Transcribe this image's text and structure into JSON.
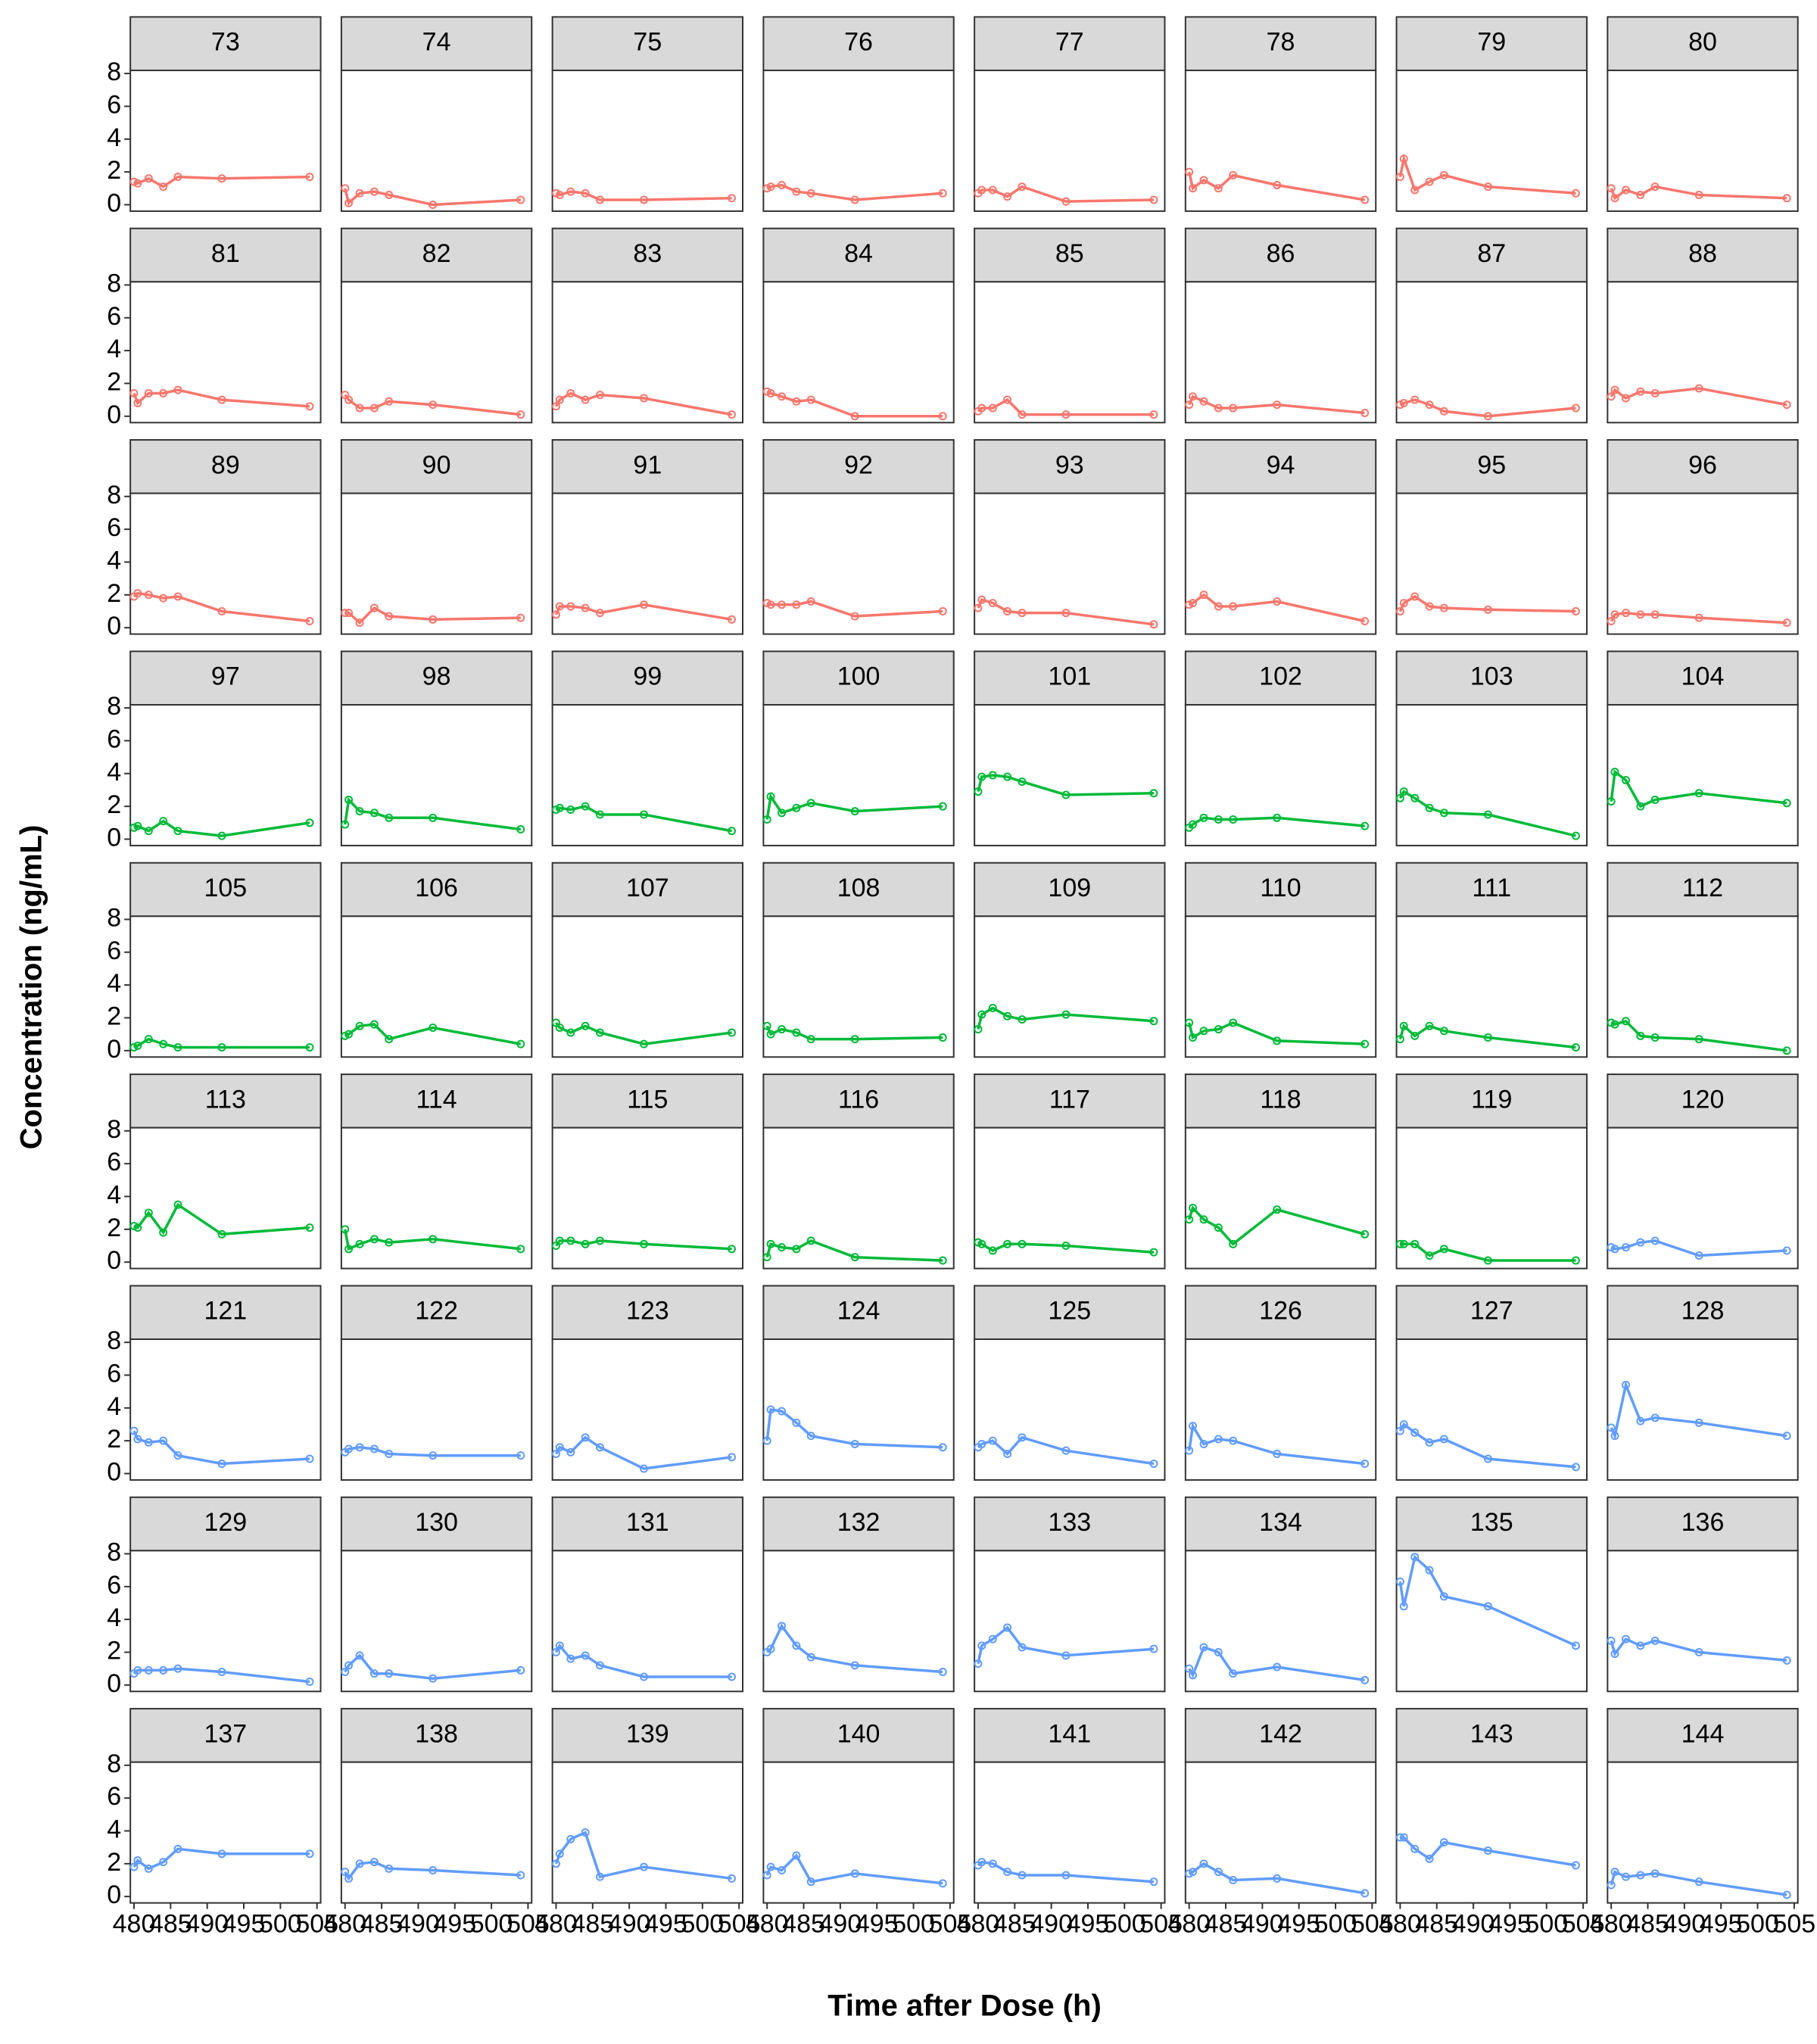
{
  "chart_data": {
    "type": "line",
    "xlabel": "Time after Dose (h)",
    "ylabel": "Concentration (ng/mL)",
    "x": [
      480,
      480.5,
      482,
      484,
      486,
      492,
      504
    ],
    "xlim": [
      479.5,
      505.5
    ],
    "xticks": [
      480,
      485,
      490,
      495,
      500,
      505
    ],
    "ylim": [
      -0.39,
      8.19
    ],
    "yticks": [
      0,
      2,
      4,
      6,
      8
    ],
    "panels": [
      {
        "title": "73",
        "color": "#F8766D",
        "values": [
          1.4,
          1.3,
          1.6,
          1.1,
          1.7,
          1.6,
          1.7
        ]
      },
      {
        "title": "74",
        "color": "#F8766D",
        "values": [
          1.0,
          0.1,
          0.7,
          0.8,
          0.6,
          0.0,
          0.3
        ]
      },
      {
        "title": "75",
        "color": "#F8766D",
        "values": [
          0.7,
          0.6,
          0.8,
          0.7,
          0.3,
          0.3,
          0.4
        ]
      },
      {
        "title": "76",
        "color": "#F8766D",
        "values": [
          1.0,
          1.1,
          1.2,
          0.8,
          0.7,
          0.3,
          0.7
        ]
      },
      {
        "title": "77",
        "color": "#F8766D",
        "values": [
          0.7,
          0.9,
          0.9,
          0.5,
          1.1,
          0.2,
          0.3
        ]
      },
      {
        "title": "78",
        "color": "#F8766D",
        "values": [
          2.0,
          1.0,
          1.5,
          1.0,
          1.8,
          1.2,
          0.3
        ]
      },
      {
        "title": "79",
        "color": "#F8766D",
        "values": [
          1.7,
          2.8,
          0.9,
          1.4,
          1.8,
          1.1,
          0.7
        ]
      },
      {
        "title": "80",
        "color": "#F8766D",
        "values": [
          1.0,
          0.4,
          0.9,
          0.6,
          1.1,
          0.6,
          0.4
        ]
      },
      {
        "title": "81",
        "color": "#F8766D",
        "values": [
          1.4,
          0.8,
          1.4,
          1.4,
          1.6,
          1.0,
          0.6
        ]
      },
      {
        "title": "82",
        "color": "#F8766D",
        "values": [
          1.3,
          1.0,
          0.5,
          0.5,
          0.9,
          0.7,
          0.1
        ]
      },
      {
        "title": "83",
        "color": "#F8766D",
        "values": [
          0.6,
          1.0,
          1.4,
          1.0,
          1.3,
          1.1,
          0.1
        ]
      },
      {
        "title": "84",
        "color": "#F8766D",
        "values": [
          1.5,
          1.4,
          1.2,
          0.9,
          1.0,
          0.0,
          0.0
        ]
      },
      {
        "title": "85",
        "color": "#F8766D",
        "values": [
          0.3,
          0.5,
          0.5,
          1.0,
          0.1,
          0.1,
          0.1
        ]
      },
      {
        "title": "86",
        "color": "#F8766D",
        "values": [
          0.7,
          1.2,
          0.9,
          0.5,
          0.5,
          0.7,
          0.2
        ]
      },
      {
        "title": "87",
        "color": "#F8766D",
        "values": [
          0.7,
          0.8,
          1.0,
          0.7,
          0.3,
          0.0,
          0.5
        ]
      },
      {
        "title": "88",
        "color": "#F8766D",
        "values": [
          1.2,
          1.6,
          1.1,
          1.5,
          1.4,
          1.7,
          0.7
        ]
      },
      {
        "title": "89",
        "color": "#F8766D",
        "values": [
          1.9,
          2.1,
          2.0,
          1.8,
          1.9,
          1.0,
          0.4
        ]
      },
      {
        "title": "90",
        "color": "#F8766D",
        "values": [
          0.9,
          0.9,
          0.3,
          1.2,
          0.7,
          0.5,
          0.6
        ]
      },
      {
        "title": "91",
        "color": "#F8766D",
        "values": [
          0.8,
          1.3,
          1.3,
          1.2,
          0.9,
          1.4,
          0.5
        ]
      },
      {
        "title": "92",
        "color": "#F8766D",
        "values": [
          1.5,
          1.4,
          1.4,
          1.4,
          1.6,
          0.7,
          1.0
        ]
      },
      {
        "title": "93",
        "color": "#F8766D",
        "values": [
          1.2,
          1.7,
          1.5,
          1.0,
          0.9,
          0.9,
          0.2
        ]
      },
      {
        "title": "94",
        "color": "#F8766D",
        "values": [
          1.4,
          1.5,
          2.0,
          1.3,
          1.3,
          1.6,
          0.4
        ]
      },
      {
        "title": "95",
        "color": "#F8766D",
        "values": [
          1.0,
          1.5,
          1.9,
          1.3,
          1.2,
          1.1,
          1.0
        ]
      },
      {
        "title": "96",
        "color": "#F8766D",
        "values": [
          0.4,
          0.8,
          0.9,
          0.8,
          0.8,
          0.6,
          0.3
        ]
      },
      {
        "title": "97",
        "color": "#00BA38",
        "values": [
          0.7,
          0.8,
          0.5,
          1.1,
          0.5,
          0.2,
          1.0
        ]
      },
      {
        "title": "98",
        "color": "#00BA38",
        "values": [
          0.9,
          2.4,
          1.7,
          1.6,
          1.3,
          1.3,
          0.6
        ]
      },
      {
        "title": "99",
        "color": "#00BA38",
        "values": [
          1.8,
          1.9,
          1.8,
          2.0,
          1.5,
          1.5,
          0.5
        ]
      },
      {
        "title": "100",
        "color": "#00BA38",
        "values": [
          1.2,
          2.6,
          1.6,
          1.9,
          2.2,
          1.7,
          2.0
        ]
      },
      {
        "title": "101",
        "color": "#00BA38",
        "values": [
          2.9,
          3.8,
          3.9,
          3.8,
          3.5,
          2.7,
          2.8
        ]
      },
      {
        "title": "102",
        "color": "#00BA38",
        "values": [
          0.7,
          0.9,
          1.3,
          1.2,
          1.2,
          1.3,
          0.8
        ]
      },
      {
        "title": "103",
        "color": "#00BA38",
        "values": [
          2.5,
          2.9,
          2.5,
          1.9,
          1.6,
          1.5,
          0.2
        ]
      },
      {
        "title": "104",
        "color": "#00BA38",
        "values": [
          2.3,
          4.1,
          3.6,
          2.0,
          2.4,
          2.8,
          2.2
        ]
      },
      {
        "title": "105",
        "color": "#00BA38",
        "values": [
          0.2,
          0.3,
          0.7,
          0.4,
          0.2,
          0.2,
          0.2
        ]
      },
      {
        "title": "106",
        "color": "#00BA38",
        "values": [
          0.9,
          1.0,
          1.5,
          1.6,
          0.7,
          1.4,
          0.4
        ]
      },
      {
        "title": "107",
        "color": "#00BA38",
        "values": [
          1.7,
          1.4,
          1.1,
          1.5,
          1.1,
          0.4,
          1.1
        ]
      },
      {
        "title": "108",
        "color": "#00BA38",
        "values": [
          1.5,
          1.0,
          1.3,
          1.1,
          0.7,
          0.7,
          0.8
        ]
      },
      {
        "title": "109",
        "color": "#00BA38",
        "values": [
          1.3,
          2.2,
          2.6,
          2.1,
          1.9,
          2.2,
          1.8
        ]
      },
      {
        "title": "110",
        "color": "#00BA38",
        "values": [
          1.7,
          0.8,
          1.2,
          1.3,
          1.7,
          0.6,
          0.4
        ]
      },
      {
        "title": "111",
        "color": "#00BA38",
        "values": [
          0.7,
          1.5,
          0.9,
          1.5,
          1.2,
          0.8,
          0.2
        ]
      },
      {
        "title": "112",
        "color": "#00BA38",
        "values": [
          1.7,
          1.6,
          1.8,
          0.9,
          0.8,
          0.7,
          0.0
        ]
      },
      {
        "title": "113",
        "color": "#00BA38",
        "values": [
          2.2,
          2.1,
          3.0,
          1.8,
          3.5,
          1.7,
          2.1
        ]
      },
      {
        "title": "114",
        "color": "#00BA38",
        "values": [
          2.0,
          0.8,
          1.1,
          1.4,
          1.2,
          1.4,
          0.8
        ]
      },
      {
        "title": "115",
        "color": "#00BA38",
        "values": [
          1.0,
          1.3,
          1.3,
          1.1,
          1.3,
          1.1,
          0.8
        ]
      },
      {
        "title": "116",
        "color": "#00BA38",
        "values": [
          0.3,
          1.1,
          0.9,
          0.8,
          1.3,
          0.3,
          0.1
        ]
      },
      {
        "title": "117",
        "color": "#00BA38",
        "values": [
          1.2,
          1.1,
          0.7,
          1.1,
          1.1,
          1.0,
          0.6
        ]
      },
      {
        "title": "118",
        "color": "#00BA38",
        "values": [
          2.6,
          3.3,
          2.6,
          2.1,
          1.1,
          3.2,
          1.7
        ]
      },
      {
        "title": "119",
        "color": "#00BA38",
        "values": [
          1.1,
          1.1,
          1.1,
          0.4,
          0.8,
          0.1,
          0.1
        ]
      },
      {
        "title": "120",
        "color": "#619CFF",
        "values": [
          0.9,
          0.8,
          0.9,
          1.2,
          1.3,
          0.4,
          0.7
        ]
      },
      {
        "title": "121",
        "color": "#619CFF",
        "values": [
          2.6,
          2.1,
          1.9,
          2.0,
          1.1,
          0.6,
          0.9
        ]
      },
      {
        "title": "122",
        "color": "#619CFF",
        "values": [
          1.3,
          1.5,
          1.6,
          1.5,
          1.2,
          1.1,
          1.1
        ]
      },
      {
        "title": "123",
        "color": "#619CFF",
        "values": [
          1.2,
          1.6,
          1.3,
          2.2,
          1.6,
          0.3,
          1.0
        ]
      },
      {
        "title": "124",
        "color": "#619CFF",
        "values": [
          2.0,
          3.9,
          3.8,
          3.1,
          2.3,
          1.8,
          1.6
        ]
      },
      {
        "title": "125",
        "color": "#619CFF",
        "values": [
          1.6,
          1.8,
          2.0,
          1.2,
          2.2,
          1.4,
          0.6
        ]
      },
      {
        "title": "126",
        "color": "#619CFF",
        "values": [
          1.4,
          2.9,
          1.8,
          2.1,
          2.0,
          1.2,
          0.6
        ]
      },
      {
        "title": "127",
        "color": "#619CFF",
        "values": [
          2.6,
          3.0,
          2.5,
          1.9,
          2.1,
          0.9,
          0.4
        ]
      },
      {
        "title": "128",
        "color": "#619CFF",
        "values": [
          2.8,
          2.3,
          5.4,
          3.2,
          3.4,
          3.1,
          2.3
        ]
      },
      {
        "title": "129",
        "color": "#619CFF",
        "values": [
          0.7,
          0.9,
          0.9,
          0.9,
          1.0,
          0.8,
          0.2
        ]
      },
      {
        "title": "130",
        "color": "#619CFF",
        "values": [
          0.8,
          1.2,
          1.8,
          0.7,
          0.7,
          0.4,
          0.9
        ]
      },
      {
        "title": "131",
        "color": "#619CFF",
        "values": [
          2.0,
          2.4,
          1.6,
          1.8,
          1.2,
          0.5,
          0.5
        ]
      },
      {
        "title": "132",
        "color": "#619CFF",
        "values": [
          2.0,
          2.2,
          3.6,
          2.4,
          1.7,
          1.2,
          0.8
        ]
      },
      {
        "title": "133",
        "color": "#619CFF",
        "values": [
          1.3,
          2.4,
          2.8,
          3.5,
          2.3,
          1.8,
          2.2
        ]
      },
      {
        "title": "134",
        "color": "#619CFF",
        "values": [
          1.0,
          0.6,
          2.3,
          2.0,
          0.7,
          1.1,
          0.3
        ]
      },
      {
        "title": "135",
        "color": "#619CFF",
        "values": [
          6.3,
          4.8,
          7.8,
          7.0,
          5.4,
          4.8,
          2.4
        ]
      },
      {
        "title": "136",
        "color": "#619CFF",
        "values": [
          2.7,
          1.9,
          2.8,
          2.4,
          2.7,
          2.0,
          1.5
        ]
      },
      {
        "title": "137",
        "color": "#619CFF",
        "values": [
          1.8,
          2.2,
          1.7,
          2.1,
          2.9,
          2.6,
          2.6
        ]
      },
      {
        "title": "138",
        "color": "#619CFF",
        "values": [
          1.5,
          1.1,
          2.0,
          2.1,
          1.7,
          1.6,
          1.3
        ]
      },
      {
        "title": "139",
        "color": "#619CFF",
        "values": [
          2.0,
          2.6,
          3.5,
          3.9,
          1.2,
          1.8,
          1.1
        ]
      },
      {
        "title": "140",
        "color": "#619CFF",
        "values": [
          1.3,
          1.8,
          1.6,
          2.5,
          0.9,
          1.4,
          0.8
        ]
      },
      {
        "title": "141",
        "color": "#619CFF",
        "values": [
          1.9,
          2.1,
          2.0,
          1.5,
          1.3,
          1.3,
          0.9
        ]
      },
      {
        "title": "142",
        "color": "#619CFF",
        "values": [
          1.4,
          1.5,
          2.0,
          1.5,
          1.0,
          1.1,
          0.2
        ]
      },
      {
        "title": "143",
        "color": "#619CFF",
        "values": [
          3.6,
          3.6,
          2.9,
          2.3,
          3.3,
          2.8,
          1.9
        ]
      },
      {
        "title": "144",
        "color": "#619CFF",
        "values": [
          0.7,
          1.5,
          1.2,
          1.3,
          1.4,
          0.9,
          0.1
        ]
      }
    ]
  }
}
